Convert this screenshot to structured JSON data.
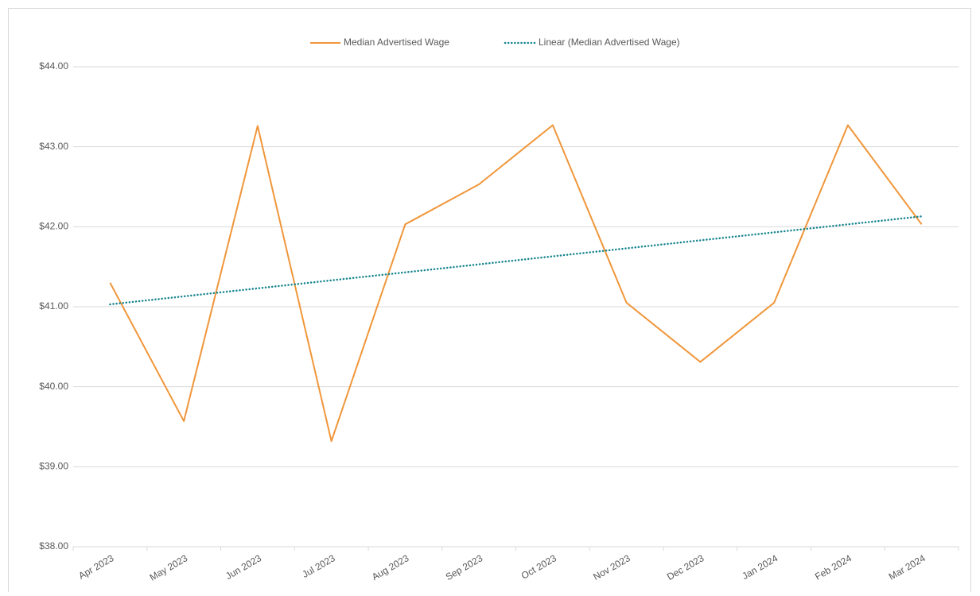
{
  "chart_data": {
    "type": "line",
    "categories": [
      "Apr 2023",
      "May 2023",
      "Jun 2023",
      "Jul 2023",
      "Aug 2023",
      "Sep 2023",
      "Oct 2023",
      "Nov 2023",
      "Dec 2023",
      "Jan 2024",
      "Feb 2024",
      "Mar 2024"
    ],
    "series": [
      {
        "name": "Median Advertised Wage",
        "color": "#f0963a",
        "dash": "solid",
        "values": [
          41.3,
          39.57,
          43.26,
          39.32,
          42.03,
          42.53,
          43.27,
          41.05,
          40.31,
          41.05,
          43.27,
          42.03
        ]
      },
      {
        "name": "Linear (Median Advertised Wage)",
        "color": "#17858f",
        "dash": "dotted",
        "values": [
          41.03,
          41.13,
          41.23,
          41.33,
          41.43,
          41.53,
          41.63,
          41.73,
          41.83,
          41.93,
          42.03,
          42.13
        ]
      }
    ],
    "ylim": [
      38,
      44
    ],
    "yticks": [
      {
        "value": 38,
        "label": "$38.00"
      },
      {
        "value": 39,
        "label": "$39.00"
      },
      {
        "value": 40,
        "label": "$40.00"
      },
      {
        "value": 41,
        "label": "$41.00"
      },
      {
        "value": 42,
        "label": "$42.00"
      },
      {
        "value": 43,
        "label": "$43.00"
      },
      {
        "value": 44,
        "label": "$44.00"
      }
    ],
    "grid": true,
    "legend": "top"
  }
}
